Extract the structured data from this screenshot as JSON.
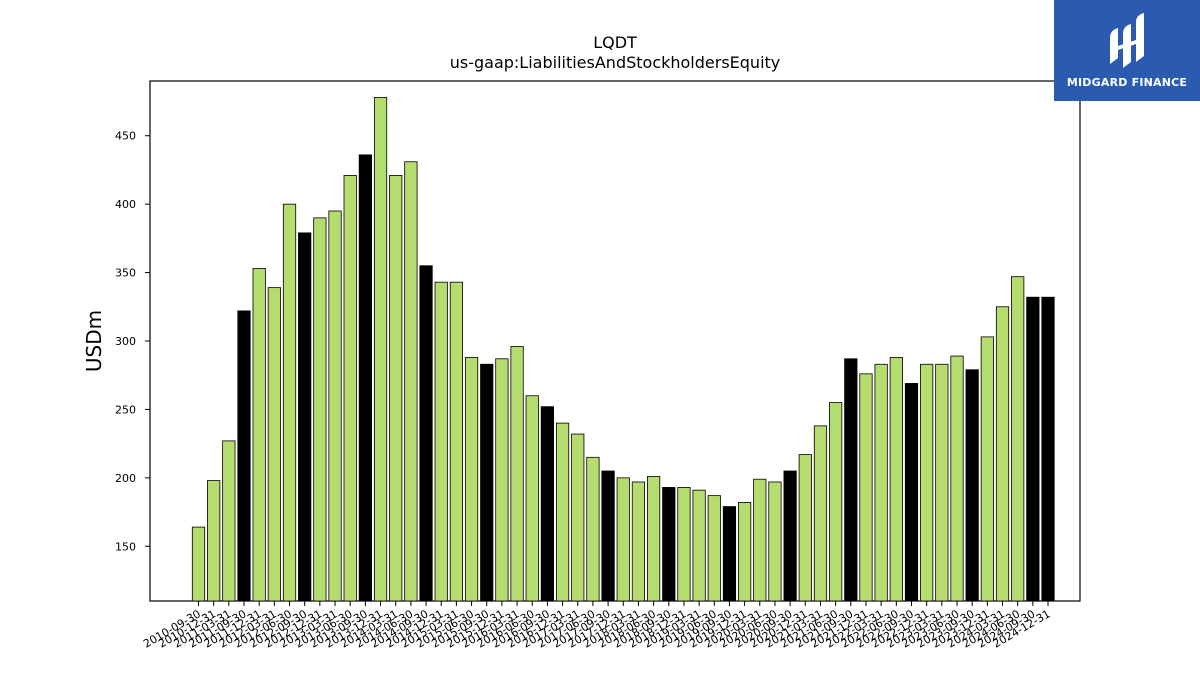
{
  "chart_data": {
    "type": "bar",
    "title": "LQDT",
    "subtitle": "us-gaap:LiabilitiesAndStockholdersEquity",
    "xlabel": "",
    "ylabel": "USDm",
    "ylim": [
      110,
      490
    ],
    "yticks": [
      150,
      200,
      250,
      300,
      350,
      400,
      450
    ],
    "grid": false,
    "colors": {
      "quarter": "#b5dc6e",
      "fiscal_year_end": "#000000",
      "edge": "#000000"
    },
    "categories": [
      "2010-09-30",
      "2010-12-31",
      "2011-03-31",
      "2011-09-30",
      "2011-12-31",
      "2012-03-31",
      "2012-06-30",
      "2012-09-30",
      "2012-12-31",
      "2013-03-31",
      "2013-06-30",
      "2013-09-30",
      "2013-12-31",
      "2014-03-31",
      "2014-06-30",
      "2014-09-30",
      "2014-12-31",
      "2015-03-31",
      "2015-06-30",
      "2015-09-30",
      "2015-12-31",
      "2016-03-31",
      "2016-06-30",
      "2016-09-30",
      "2016-12-31",
      "2017-03-31",
      "2017-06-30",
      "2017-09-30",
      "2017-12-31",
      "2018-03-31",
      "2018-06-30",
      "2018-09-30",
      "2018-12-31",
      "2019-03-31",
      "2019-06-30",
      "2019-09-30",
      "2019-12-31",
      "2020-03-31",
      "2020-06-30",
      "2020-09-30",
      "2020-12-31",
      "2021-03-31",
      "2021-06-30",
      "2021-09-30",
      "2021-12-31",
      "2022-03-31",
      "2022-06-30",
      "2022-09-30",
      "2022-12-31",
      "2023-03-31",
      "2023-06-30",
      "2023-09-30",
      "2023-12-31",
      "2024-03-31",
      "2024-06-30",
      "2024-09-30",
      "2024-12-31"
    ],
    "values": [
      164,
      198,
      227,
      322,
      353,
      339,
      400,
      379,
      390,
      395,
      421,
      436,
      478,
      421,
      431,
      355,
      343,
      343,
      288,
      283,
      287,
      296,
      260,
      252,
      240,
      232,
      215,
      205,
      200,
      197,
      201,
      193,
      193,
      191,
      187,
      179,
      182,
      199,
      197,
      205,
      217,
      238,
      255,
      287,
      276,
      283,
      288,
      269,
      283,
      283,
      289,
      279,
      303,
      325,
      347,
      332,
      332
    ],
    "fiscal_year_end": [
      false,
      false,
      false,
      true,
      false,
      false,
      false,
      true,
      false,
      false,
      false,
      true,
      false,
      false,
      false,
      true,
      false,
      false,
      false,
      true,
      false,
      false,
      false,
      true,
      false,
      false,
      false,
      true,
      false,
      false,
      false,
      true,
      false,
      false,
      false,
      true,
      false,
      false,
      false,
      true,
      false,
      false,
      false,
      true,
      false,
      false,
      false,
      true,
      false,
      false,
      false,
      true,
      false,
      false,
      false,
      true,
      true
    ]
  },
  "logo": {
    "text": "MIDGARD FINANCE"
  }
}
